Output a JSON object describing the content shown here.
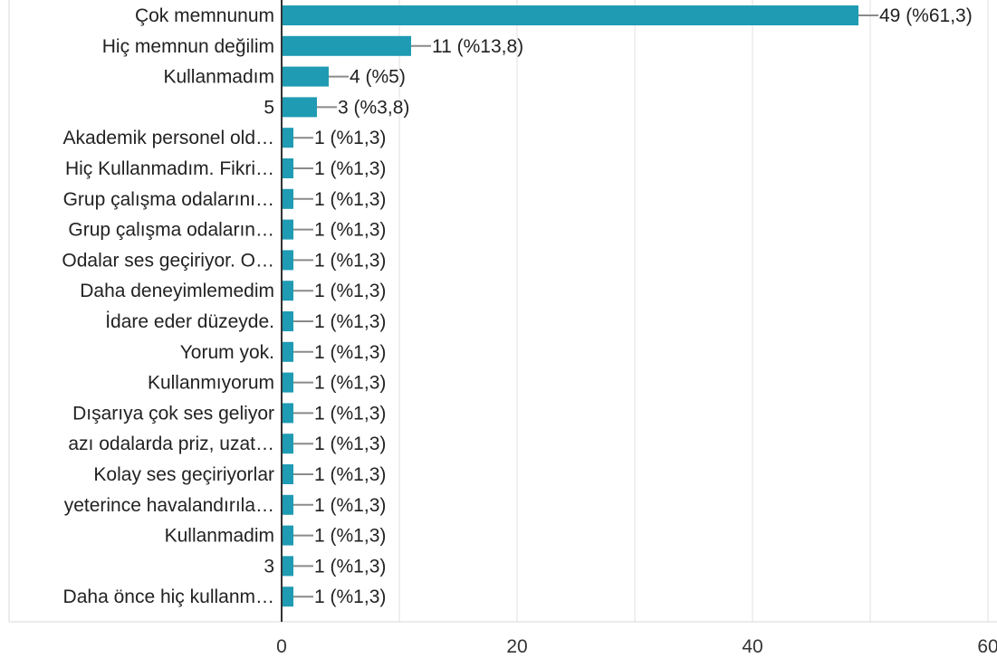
{
  "chart_data": {
    "type": "bar",
    "orientation": "horizontal",
    "title": "",
    "xlabel": "",
    "ylabel": "",
    "xlim": [
      0,
      60
    ],
    "xticks": [
      0,
      20,
      40,
      60
    ],
    "grid": true,
    "legend": "none",
    "bar_color": "#1f9bb3",
    "categories": [
      "Çok memnunum",
      "Hiç memnun değilim",
      "Kullanmadım",
      "5",
      "Akademik personel old…",
      "Hiç Kullanmadım. Fikri…",
      "Grup çalışma odalarını…",
      "Grup çalışma odaların…",
      "Odalar ses geçiriyor. O…",
      "Daha deneyimlemedim",
      "İdare eder düzeyde.",
      "Yorum yok.",
      "Kullanmıyorum",
      "Dışarıya çok ses geliyor",
      "azı odalarda priz, uzat…",
      "Kolay ses geçiriyorlar",
      "yeterince havalandırıla…",
      "Kullanmadim",
      "3",
      "Daha önce hiç kullanm…"
    ],
    "values": [
      49,
      11,
      4,
      3,
      1,
      1,
      1,
      1,
      1,
      1,
      1,
      1,
      1,
      1,
      1,
      1,
      1,
      1,
      1,
      1
    ],
    "value_labels": [
      "49 (%61,3)",
      "11 (%13,8)",
      "4 (%5)",
      "3 (%3,8)",
      "1 (%1,3)",
      "1 (%1,3)",
      "1 (%1,3)",
      "1 (%1,3)",
      "1 (%1,3)",
      "1 (%1,3)",
      "1 (%1,3)",
      "1 (%1,3)",
      "1 (%1,3)",
      "1 (%1,3)",
      "1 (%1,3)",
      "1 (%1,3)",
      "1 (%1,3)",
      "1 (%1,3)",
      "1 (%1,3)",
      "1 (%1,3)"
    ]
  }
}
